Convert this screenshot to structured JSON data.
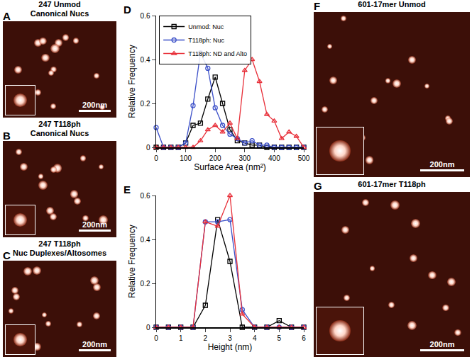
{
  "panels": [
    {
      "panel_label": "A",
      "title": [
        "247 Unmod",
        "Canonical Nucs"
      ],
      "scale_bar": "200nm"
    },
    {
      "panel_label": "B",
      "title": [
        "247 T118ph",
        "Canonical Nucs"
      ],
      "scale_bar": "200nm"
    },
    {
      "panel_label": "C",
      "title": [
        "247 T118ph",
        "Nuc Duplexes/Altosomes"
      ],
      "scale_bar": "200nm"
    },
    {
      "panel_label": "F",
      "title": [
        "601-17mer Unmod"
      ],
      "scale_bar": "200nm"
    },
    {
      "panel_label": "G",
      "title": [
        "601-17mer T118ph"
      ],
      "scale_bar": "200nm"
    }
  ],
  "chart_data": [
    {
      "panel_label": "D",
      "type": "line",
      "xlabel": "Surface Area (nm²)",
      "ylabel": "Relative Frequency",
      "x": [
        0,
        25,
        50,
        75,
        100,
        125,
        150,
        175,
        200,
        225,
        250,
        275,
        300,
        325,
        350,
        375,
        400,
        425,
        450,
        475,
        500
      ],
      "series": [
        {
          "name": "Unmod: Nuc",
          "color": "#000000",
          "marker": "square",
          "line_style": "solid",
          "values": [
            0,
            0,
            0,
            0,
            0.02,
            0.1,
            0.11,
            0.22,
            0.32,
            0.2,
            0.08,
            0.03,
            0.02,
            0.01,
            0.01,
            0,
            0,
            0,
            0,
            0,
            0
          ]
        },
        {
          "name": "T118ph: Nuc",
          "color": "#3b4fc8",
          "marker": "circle",
          "line_style": "solid",
          "values": [
            0.09,
            0,
            0,
            0,
            0.02,
            0.19,
            0.43,
            0.36,
            0.18,
            0.1,
            0.06,
            0.04,
            0.02,
            0.03,
            0.01,
            0.01,
            0,
            0,
            0,
            0,
            0
          ]
        },
        {
          "name": "T118ph: ND and Alto",
          "color": "#e8303a",
          "marker": "triangle",
          "line_style": "solid",
          "values": [
            0,
            0,
            0,
            0,
            0,
            0,
            0.03,
            0.08,
            0.1,
            0.07,
            0.11,
            0.04,
            0.35,
            0.4,
            0.3,
            0.15,
            0.12,
            0.04,
            0.07,
            0.05,
            0
          ]
        }
      ],
      "xlim": [
        0,
        500
      ],
      "xticks": [
        0,
        100,
        200,
        300,
        400,
        500
      ],
      "ylim": [
        0,
        0.6
      ],
      "yticks": [
        0,
        0.2,
        0.4,
        0.6
      ],
      "legend": "top left"
    },
    {
      "panel_label": "E",
      "type": "line",
      "xlabel": "Height (nm)",
      "ylabel": "Relative Frequency",
      "x": [
        0,
        0.5,
        1,
        1.5,
        2,
        2.5,
        3,
        3.5,
        4,
        4.5,
        5,
        5.5,
        6
      ],
      "series": [
        {
          "name": "Unmod: Nuc",
          "color": "#000000",
          "marker": "square",
          "line_style": "solid",
          "values": [
            0,
            0,
            0,
            0,
            0.1,
            0.49,
            0.3,
            0,
            0,
            0,
            0.03,
            0,
            0
          ]
        },
        {
          "name": "T118ph: Nuc",
          "color": "#3b4fc8",
          "marker": "circle",
          "line_style": "solid",
          "values": [
            0,
            0,
            0,
            0,
            0.48,
            0.48,
            0.49,
            0.08,
            0,
            0,
            0,
            0,
            0
          ]
        },
        {
          "name": "T118ph: ND and Alto",
          "color": "#e8303a",
          "marker": "triangle",
          "line_style": "solid",
          "values": [
            0,
            0,
            0,
            0,
            0.48,
            0.46,
            0.6,
            0.06,
            0,
            0,
            0,
            0,
            0
          ]
        }
      ],
      "xlim": [
        0,
        6
      ],
      "xticks": [
        0,
        1,
        2,
        3,
        4,
        5,
        6
      ],
      "ylim": [
        0,
        0.6
      ],
      "yticks": [
        0,
        0.2,
        0.4,
        0.6
      ]
    }
  ]
}
